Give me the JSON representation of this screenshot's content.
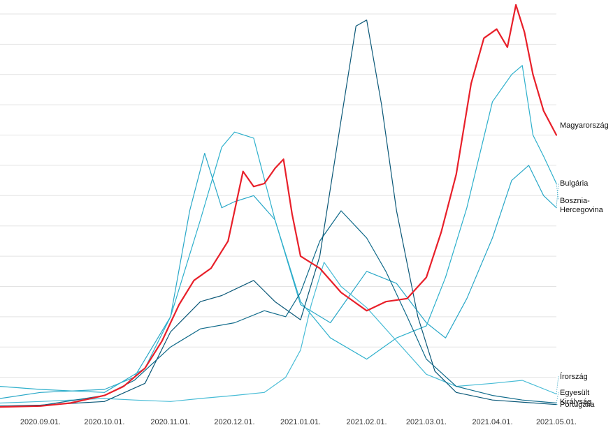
{
  "chart_data": {
    "type": "line",
    "title": "",
    "xlabel": "",
    "ylabel": "",
    "x_ticks": [
      "2020.09.01.",
      "2020.10.01.",
      "2020.11.01.",
      "2020.12.01.",
      "2021.01.01.",
      "2021.02.01.",
      "2021.03.01.",
      "2021.04.01.",
      "2021.05.01."
    ],
    "xlim": [
      "2020.08.13.",
      "2021.05.01."
    ],
    "ylim": [
      0,
      13
    ],
    "grid": true,
    "y_gridlines": [
      1,
      2,
      3,
      4,
      5,
      6,
      7,
      8,
      9,
      10,
      11,
      12,
      13
    ],
    "legend": "direct-labels-right",
    "series": [
      {
        "name": "Magyarország",
        "color": "#e8202a",
        "emphasis": true,
        "x": [
          "2020.08.13.",
          "2020.09.01.",
          "2020.09.15.",
          "2020.10.01.",
          "2020.10.10.",
          "2020.10.20.",
          "2020.10.28.",
          "2020.11.05.",
          "2020.11.12.",
          "2020.11.20.",
          "2020.11.28.",
          "2020.12.05.",
          "2020.12.10.",
          "2020.12.15.",
          "2020.12.20.",
          "2020.12.24.",
          "2020.12.28.",
          "2021.01.01.",
          "2021.01.10.",
          "2021.01.20.",
          "2021.02.01.",
          "2021.02.10.",
          "2021.02.20.",
          "2021.03.01.",
          "2021.03.08.",
          "2021.03.15.",
          "2021.03.22.",
          "2021.03.28.",
          "2021.04.03.",
          "2021.04.08.",
          "2021.04.12.",
          "2021.04.16.",
          "2021.04.20.",
          "2021.04.25.",
          "2021.05.01."
        ],
        "values": [
          0.02,
          0.05,
          0.15,
          0.4,
          0.7,
          1.3,
          2.2,
          3.4,
          4.2,
          4.6,
          5.5,
          7.8,
          7.3,
          7.4,
          7.9,
          8.2,
          6.4,
          5.0,
          4.6,
          3.8,
          3.2,
          3.5,
          3.6,
          4.3,
          5.8,
          7.7,
          10.7,
          12.2,
          12.5,
          11.9,
          13.3,
          12.4,
          11.0,
          9.8,
          9.0
        ]
      },
      {
        "name": "Bulgária",
        "color": "#2aa8c8",
        "x": [
          "2020.08.13.",
          "2020.09.01.",
          "2020.10.01.",
          "2020.10.15.",
          "2020.11.01.",
          "2020.11.10.",
          "2020.11.17.",
          "2020.11.25.",
          "2020.12.01.",
          "2020.12.10.",
          "2020.12.20.",
          "2021.01.01.",
          "2021.01.15.",
          "2021.02.01.",
          "2021.02.15.",
          "2021.03.01.",
          "2021.03.10.",
          "2021.03.20.",
          "2021.04.01.",
          "2021.04.10.",
          "2021.04.18.",
          "2021.04.25.",
          "2021.05.01."
        ],
        "values": [
          0.3,
          0.5,
          0.6,
          1.0,
          3.0,
          6.5,
          8.4,
          6.6,
          6.8,
          7.0,
          6.2,
          3.4,
          2.8,
          4.5,
          4.1,
          2.8,
          2.3,
          3.6,
          5.6,
          7.5,
          8.0,
          7.0,
          6.6
        ]
      },
      {
        "name": "Bosznia-Hercegovina",
        "color": "#2eb0cc",
        "x": [
          "2020.08.13.",
          "2020.09.01.",
          "2020.10.01.",
          "2020.10.20.",
          "2020.11.01.",
          "2020.11.15.",
          "2020.11.25.",
          "2020.12.01.",
          "2020.12.10.",
          "2020.12.20.",
          "2021.01.01.",
          "2021.01.15.",
          "2021.02.01.",
          "2021.02.15.",
          "2021.03.01.",
          "2021.03.10.",
          "2021.03.20.",
          "2021.04.01.",
          "2021.04.10.",
          "2021.04.15.",
          "2021.04.20.",
          "2021.04.25.",
          "2021.05.01."
        ],
        "values": [
          0.7,
          0.6,
          0.5,
          1.3,
          3.0,
          6.2,
          8.6,
          9.1,
          8.9,
          6.2,
          3.5,
          2.3,
          1.6,
          2.3,
          2.7,
          4.3,
          6.6,
          10.1,
          11.0,
          11.3,
          9.0,
          8.3,
          7.4
        ]
      },
      {
        "name": "Írország",
        "color": "#48bcd6",
        "x": [
          "2020.08.13.",
          "2020.09.01.",
          "2020.10.01.",
          "2020.10.15.",
          "2020.11.01.",
          "2020.11.15.",
          "2020.12.01.",
          "2020.12.15.",
          "2020.12.25.",
          "2021.01.01.",
          "2021.01.06.",
          "2021.01.12.",
          "2021.01.20.",
          "2021.02.01.",
          "2021.02.15.",
          "2021.03.01.",
          "2021.03.15.",
          "2021.04.01.",
          "2021.04.15.",
          "2021.05.01."
        ],
        "values": [
          0.15,
          0.2,
          0.3,
          0.25,
          0.2,
          0.3,
          0.4,
          0.5,
          1.0,
          1.9,
          3.4,
          4.8,
          4.0,
          3.3,
          2.2,
          1.1,
          0.7,
          0.8,
          0.9,
          0.45
        ]
      },
      {
        "name": "Egyesült Királyság",
        "color": "#0f6a8a",
        "x": [
          "2020.08.13.",
          "2020.09.01.",
          "2020.10.01.",
          "2020.10.15.",
          "2020.11.01.",
          "2020.11.15.",
          "2020.12.01.",
          "2020.12.15.",
          "2020.12.25.",
          "2021.01.01.",
          "2021.01.10.",
          "2021.01.20.",
          "2021.02.01.",
          "2021.02.10.",
          "2021.02.20.",
          "2021.03.01.",
          "2021.03.15.",
          "2021.04.01.",
          "2021.04.15.",
          "2021.05.01."
        ],
        "values": [
          0.05,
          0.07,
          0.4,
          0.9,
          2.0,
          2.6,
          2.8,
          3.2,
          3.0,
          3.8,
          5.5,
          6.5,
          5.6,
          4.5,
          3.0,
          1.6,
          0.7,
          0.4,
          0.25,
          0.15
        ]
      },
      {
        "name": "Portugália",
        "color": "#0b5878",
        "x": [
          "2020.08.13.",
          "2020.09.01.",
          "2020.10.01.",
          "2020.10.20.",
          "2020.11.01.",
          "2020.11.15.",
          "2020.11.25.",
          "2020.12.01.",
          "2020.12.10.",
          "2020.12.20.",
          "2021.01.01.",
          "2021.01.10.",
          "2021.01.20.",
          "2021.01.27.",
          "2021.02.01.",
          "2021.02.08.",
          "2021.02.15.",
          "2021.02.25.",
          "2021.03.05.",
          "2021.03.15.",
          "2021.04.01.",
          "2021.05.01."
        ],
        "values": [
          0.05,
          0.08,
          0.2,
          0.8,
          2.5,
          3.5,
          3.7,
          3.9,
          4.2,
          3.5,
          2.9,
          5.0,
          9.5,
          12.6,
          12.8,
          10.0,
          6.5,
          3.0,
          1.2,
          0.5,
          0.25,
          0.1
        ]
      }
    ],
    "labels": [
      {
        "series": "Magyarország",
        "lines": [
          "Magyarország"
        ],
        "leader": false
      },
      {
        "series": "Bulgária",
        "lines": [
          "Bulgária"
        ],
        "leader": true
      },
      {
        "series": "Bosznia-Hercegovina",
        "lines": [
          "Bosznia-",
          "Hercegovina"
        ],
        "leader": true
      },
      {
        "series": "Írország",
        "lines": [
          "Írország"
        ],
        "leader": true
      },
      {
        "series": "Egyesült Királyság",
        "lines": [
          "Egyesült",
          "Királyság"
        ],
        "leader": true
      },
      {
        "series": "Portugália",
        "lines": [
          "Portugália"
        ],
        "leader": true
      }
    ]
  }
}
